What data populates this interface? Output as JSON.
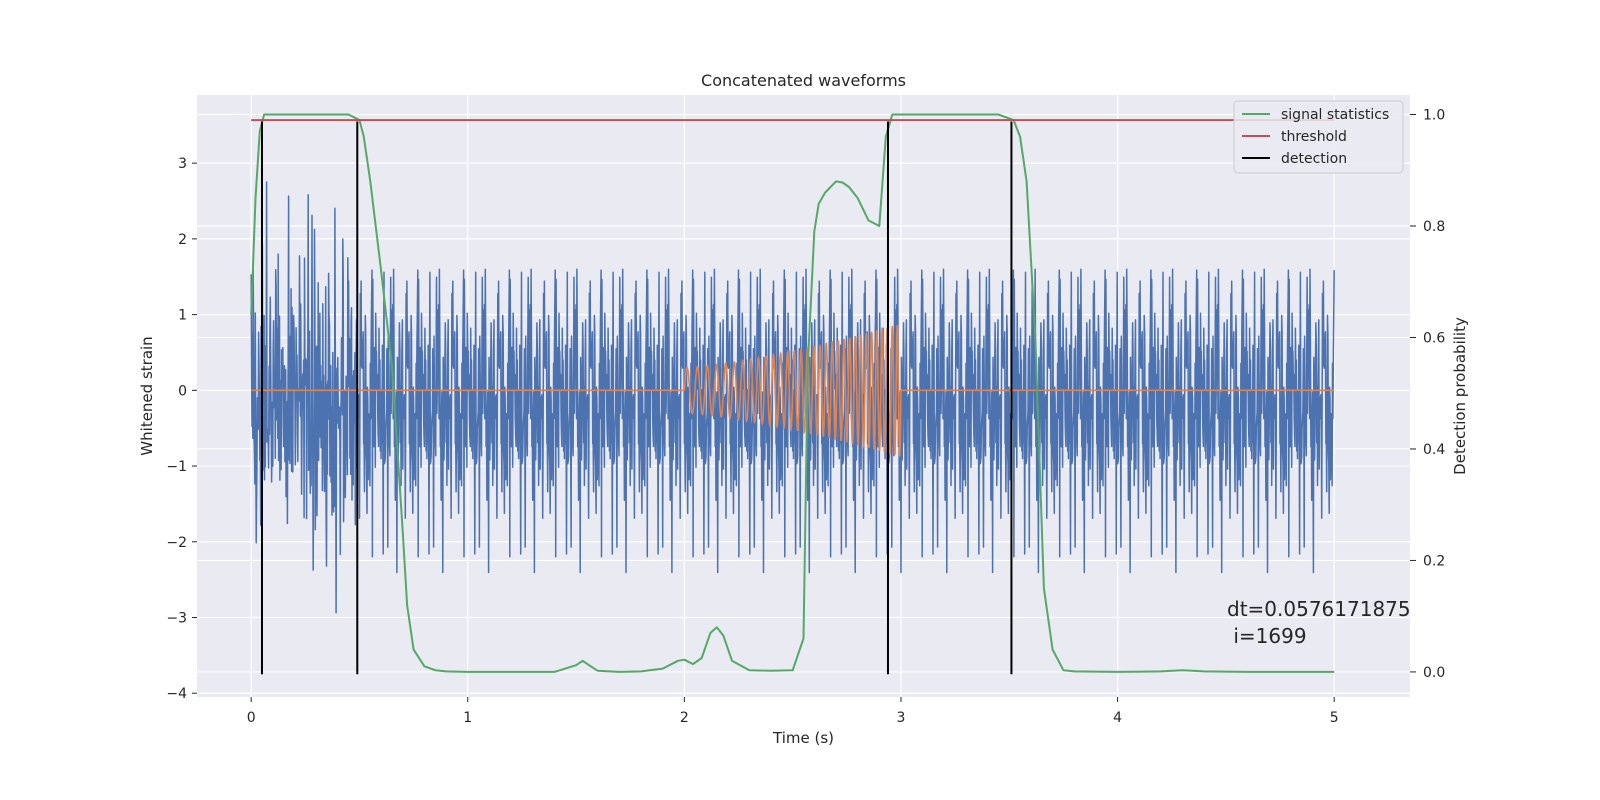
{
  "chart_data": {
    "type": "line",
    "title": "Concatenated waveforms",
    "xlabel": "Time (s)",
    "ylabel": "Whitened strain",
    "y2label": "Detection probability",
    "xlim": [
      -0.25,
      5.35
    ],
    "ylim": [
      -4.05,
      3.9
    ],
    "y2lim": [
      -0.045,
      1.035
    ],
    "xticks": [
      "0",
      "1",
      "2",
      "3",
      "4",
      "5"
    ],
    "yticks": [
      "−4",
      "−3",
      "−2",
      "−1",
      "0",
      "1",
      "2",
      "3"
    ],
    "y2ticks": [
      "0.0",
      "0.2",
      "0.4",
      "0.6",
      "0.8",
      "1.0"
    ],
    "grid": true,
    "legend_position": "top-right",
    "colors": {
      "background": "#eaeaf2",
      "grid": "#ffffff",
      "noise": "#4c72b0",
      "injection": "#dd8452",
      "signal_statistics": "#55a868",
      "threshold": "#c44e52",
      "detection": "#000000"
    },
    "series": [
      {
        "name": "signal statistics",
        "axis": "right",
        "x": [
          0.0,
          0.02,
          0.04,
          0.06,
          0.1,
          0.2,
          0.3,
          0.4,
          0.45,
          0.5,
          0.52,
          0.55,
          0.6,
          0.65,
          0.7,
          0.72,
          0.75,
          0.8,
          0.85,
          0.9,
          1.0,
          1.2,
          1.4,
          1.5,
          1.53,
          1.56,
          1.6,
          1.7,
          1.8,
          1.9,
          1.97,
          2.0,
          2.04,
          2.08,
          2.12,
          2.15,
          2.18,
          2.22,
          2.3,
          2.4,
          2.5,
          2.55,
          2.57,
          2.6,
          2.62,
          2.65,
          2.7,
          2.73,
          2.76,
          2.8,
          2.85,
          2.9,
          2.93,
          2.96,
          3.0,
          3.1,
          3.3,
          3.45,
          3.52,
          3.55,
          3.58,
          3.62,
          3.66,
          3.7,
          3.75,
          3.8,
          4.0,
          4.2,
          4.3,
          4.4,
          4.6,
          4.8,
          5.0
        ],
        "values": [
          0.64,
          0.85,
          0.97,
          1.0,
          1.0,
          1.0,
          1.0,
          1.0,
          1.0,
          0.99,
          0.96,
          0.88,
          0.72,
          0.55,
          0.25,
          0.12,
          0.04,
          0.01,
          0.003,
          0.001,
          0.0,
          0.0,
          0.0,
          0.012,
          0.02,
          0.012,
          0.002,
          0.0,
          0.001,
          0.006,
          0.02,
          0.022,
          0.014,
          0.025,
          0.07,
          0.08,
          0.065,
          0.02,
          0.003,
          0.002,
          0.003,
          0.06,
          0.55,
          0.79,
          0.84,
          0.86,
          0.88,
          0.878,
          0.87,
          0.85,
          0.81,
          0.8,
          0.96,
          1.0,
          1.0,
          1.0,
          1.0,
          1.0,
          0.99,
          0.96,
          0.88,
          0.6,
          0.15,
          0.04,
          0.003,
          0.001,
          0.0,
          0.001,
          0.003,
          0.001,
          0.0,
          0.0,
          0.0
        ]
      },
      {
        "name": "threshold",
        "axis": "right",
        "x": [
          0.0,
          5.0
        ],
        "values": [
          0.99,
          0.99
        ]
      },
      {
        "name": "detection",
        "axis": "left",
        "x": [
          0.05,
          0.49,
          2.94,
          3.51
        ],
        "y_range": [
          -3.75,
          3.55
        ]
      }
    ],
    "annotations": [
      "dt=0.0576171875",
      " i=1699"
    ]
  }
}
